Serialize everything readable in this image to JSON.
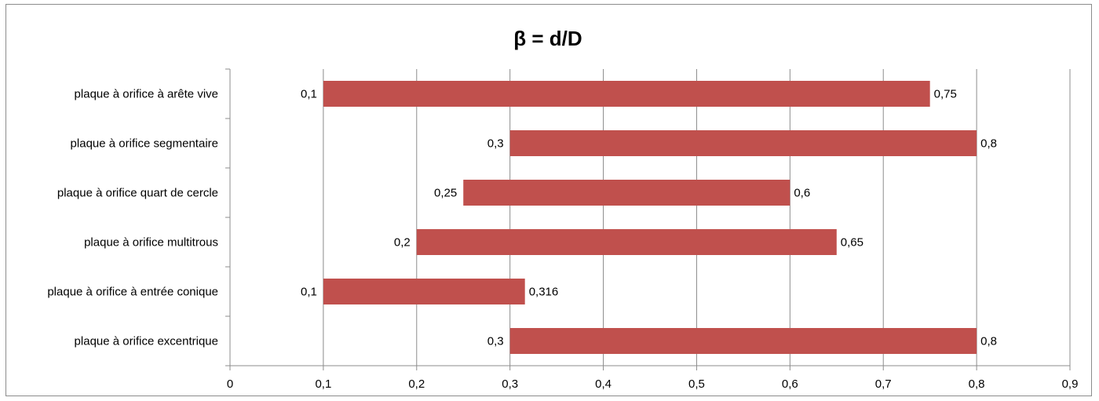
{
  "chart_data": {
    "type": "bar",
    "orientation": "horizontal",
    "title": "β = d/D",
    "xlabel": "",
    "ylabel": "",
    "xlim": [
      0,
      0.9
    ],
    "x_ticks": [
      0,
      0.1,
      0.2,
      0.3,
      0.4,
      0.5,
      0.6,
      0.7,
      0.8,
      0.9
    ],
    "x_tick_labels": [
      "0",
      "0,1",
      "0,2",
      "0,3",
      "0,4",
      "0,5",
      "0,6",
      "0,7",
      "0,8",
      "0,9"
    ],
    "grid": "vertical",
    "legend": "none",
    "bar_color": "#c0504d",
    "categories": [
      "plaque à orifice à arête vive",
      "plaque à orifice segmentaire",
      "plaque à orifice quart de cercle",
      "plaque à orifice multitrous",
      "plaque à orifice à entrée conique",
      "plaque à orifice excentrique"
    ],
    "ranges": [
      {
        "min": 0.1,
        "max": 0.75,
        "min_label": "0,1",
        "max_label": "0,75"
      },
      {
        "min": 0.3,
        "max": 0.8,
        "min_label": "0,3",
        "max_label": "0,8"
      },
      {
        "min": 0.25,
        "max": 0.6,
        "min_label": "0,25",
        "max_label": "0,6"
      },
      {
        "min": 0.2,
        "max": 0.65,
        "min_label": "0,2",
        "max_label": "0,65"
      },
      {
        "min": 0.1,
        "max": 0.316,
        "min_label": "0,1",
        "max_label": "0,316"
      },
      {
        "min": 0.3,
        "max": 0.8,
        "min_label": "0,3",
        "max_label": "0,8"
      }
    ]
  }
}
